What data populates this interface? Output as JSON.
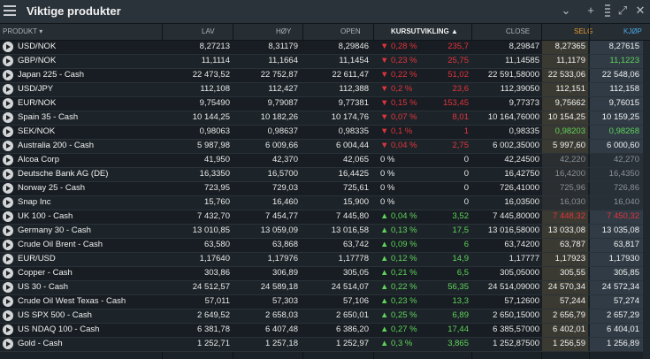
{
  "window": {
    "title": "Viktige produkter"
  },
  "header": {
    "produkt": "PRODUKT",
    "lav": "LAV",
    "hoy": "HØY",
    "open": "OPEN",
    "kurs": "KURSUTVIKLING",
    "close": "CLOSE",
    "selg": "SELG",
    "kjop": "KJØP"
  },
  "colors": {
    "selg_header": "#e69a2e",
    "kjop_header": "#4aa8e6",
    "up": "#5fd35a",
    "down": "#e0343c"
  },
  "rows": [
    {
      "name": "USD/NOK",
      "lav": "8,27213",
      "hoy": "8,31179",
      "open": "8,29846",
      "pct": "0,28 %",
      "chg": "235,7",
      "dir": "down",
      "close": "8,29847",
      "selg": "8,27365",
      "kjop": "8,27615",
      "flag": "up"
    },
    {
      "name": "GBP/NOK",
      "lav": "11,1114",
      "hoy": "11,1664",
      "open": "11,1454",
      "pct": "0,23 %",
      "chg": "25,75",
      "dir": "down",
      "close": "11,14585",
      "selg": "11,1179",
      "kjop": "11,1223",
      "flag": "up"
    },
    {
      "name": "Japan 225 - Cash",
      "lav": "22 473,52",
      "hoy": "22 752,87",
      "open": "22 611,47",
      "pct": "0,22 %",
      "chg": "51,02",
      "dir": "down",
      "close": "22 591,58000",
      "selg": "22 533,06",
      "kjop": "22 548,06",
      "flag": "up"
    },
    {
      "name": "USD/JPY",
      "lav": "112,108",
      "hoy": "112,427",
      "open": "112,388",
      "pct": "0,2 %",
      "chg": "23,6",
      "dir": "down",
      "close": "112,39050",
      "selg": "112,151",
      "kjop": "112,158",
      "flag": "up"
    },
    {
      "name": "EUR/NOK",
      "lav": "9,75490",
      "hoy": "9,79087",
      "open": "9,77381",
      "pct": "0,15 %",
      "chg": "153,45",
      "dir": "down",
      "close": "9,77373",
      "selg": "9,75662",
      "kjop": "9,76015",
      "flag": "up"
    },
    {
      "name": "Spain 35 - Cash",
      "lav": "10 144,25",
      "hoy": "10 182,26",
      "open": "10 174,76",
      "pct": "0,07 %",
      "chg": "8,01",
      "dir": "down",
      "close": "10 164,76000",
      "selg": "10 154,25",
      "kjop": "10 159,25",
      "flag": "up"
    },
    {
      "name": "SEK/NOK",
      "lav": "0,98063",
      "hoy": "0,98637",
      "open": "0,98335",
      "pct": "0,1 %",
      "chg": "1",
      "dir": "down",
      "close": "0,98335",
      "selg": "0,98203",
      "kjop": "0,98268",
      "flag": "up"
    },
    {
      "name": "Australia 200 - Cash",
      "lav": "5 987,98",
      "hoy": "6 009,66",
      "open": "6 004,44",
      "pct": "0,04 %",
      "chg": "2,75",
      "dir": "down",
      "close": "6 002,35000",
      "selg": "5 997,60",
      "kjop": "6 000,60",
      "flag": "up"
    },
    {
      "name": "Alcoa Corp",
      "lav": "41,950",
      "hoy": "42,370",
      "open": "42,065",
      "pct": "0 %",
      "chg": "0",
      "dir": "none",
      "close": "42,24500",
      "selg": "42,220",
      "kjop": "42,270",
      "flag": ""
    },
    {
      "name": "Deutsche Bank AG (DE)",
      "lav": "16,3350",
      "hoy": "16,5700",
      "open": "16,4425",
      "pct": "0 %",
      "chg": "0",
      "dir": "none",
      "close": "16,42750",
      "selg": "16,4200",
      "kjop": "16,4350",
      "flag": ""
    },
    {
      "name": "Norway 25 - Cash",
      "lav": "723,95",
      "hoy": "729,03",
      "open": "725,61",
      "pct": "0 %",
      "chg": "0",
      "dir": "none",
      "close": "726,41000",
      "selg": "725,96",
      "kjop": "726,86",
      "flag": ""
    },
    {
      "name": "Snap Inc",
      "lav": "15,760",
      "hoy": "16,460",
      "open": "15,900",
      "pct": "0 %",
      "chg": "0",
      "dir": "none",
      "close": "16,03500",
      "selg": "16,030",
      "kjop": "16,040",
      "flag": ""
    },
    {
      "name": "UK 100 - Cash",
      "lav": "7 432,70",
      "hoy": "7 454,77",
      "open": "7 445,80",
      "pct": "0,04 %",
      "chg": "3,52",
      "dir": "up",
      "close": "7 445,80000",
      "selg": "7 448,32",
      "kjop": "7 450,32",
      "flag": "up"
    },
    {
      "name": "Germany 30 - Cash",
      "lav": "13 010,85",
      "hoy": "13 059,09",
      "open": "13 016,58",
      "pct": "0,13 %",
      "chg": "17,5",
      "dir": "up",
      "close": "13 016,58000",
      "selg": "13 033,08",
      "kjop": "13 035,08",
      "flag": "up"
    },
    {
      "name": "Crude Oil Brent - Cash",
      "lav": "63,580",
      "hoy": "63,868",
      "open": "63,742",
      "pct": "0,09 %",
      "chg": "6",
      "dir": "up",
      "close": "63,74200",
      "selg": "63,787",
      "kjop": "63,817",
      "flag": "up"
    },
    {
      "name": "EUR/USD",
      "lav": "1,17640",
      "hoy": "1,17976",
      "open": "1,17778",
      "pct": "0,12 %",
      "chg": "14,9",
      "dir": "up",
      "close": "1,17777",
      "selg": "1,17923",
      "kjop": "1,17930",
      "flag": "up"
    },
    {
      "name": "Copper - Cash",
      "lav": "303,86",
      "hoy": "306,89",
      "open": "305,05",
      "pct": "0,21 %",
      "chg": "6,5",
      "dir": "up",
      "close": "305,05000",
      "selg": "305,55",
      "kjop": "305,85",
      "flag": "up"
    },
    {
      "name": "US 30 - Cash",
      "lav": "24 512,57",
      "hoy": "24 589,18",
      "open": "24 514,07",
      "pct": "0,22 %",
      "chg": "56,35",
      "dir": "up",
      "close": "24 514,09000",
      "selg": "24 570,34",
      "kjop": "24 572,34",
      "flag": "up"
    },
    {
      "name": "Crude Oil West Texas - Cash",
      "lav": "57,011",
      "hoy": "57,303",
      "open": "57,106",
      "pct": "0,23 %",
      "chg": "13,3",
      "dir": "up",
      "close": "57,12600",
      "selg": "57,244",
      "kjop": "57,274",
      "flag": "up"
    },
    {
      "name": "US SPX 500 - Cash",
      "lav": "2 649,52",
      "hoy": "2 658,03",
      "open": "2 650,01",
      "pct": "0,25 %",
      "chg": "6,89",
      "dir": "up",
      "close": "2 650,15000",
      "selg": "2 656,79",
      "kjop": "2 657,29",
      "flag": "up"
    },
    {
      "name": "US NDAQ 100 - Cash",
      "lav": "6 381,78",
      "hoy": "6 407,48",
      "open": "6 386,20",
      "pct": "0,27 %",
      "chg": "17,44",
      "dir": "up",
      "close": "6 385,57000",
      "selg": "6 402,01",
      "kjop": "6 404,01",
      "flag": "up"
    },
    {
      "name": "Gold - Cash",
      "lav": "1 252,71",
      "hoy": "1 257,18",
      "open": "1 252,97",
      "pct": "0,3 %",
      "chg": "3,865",
      "dir": "up",
      "close": "1 252,87500",
      "selg": "1 256,59",
      "kjop": "1 256,89",
      "flag": "up"
    }
  ]
}
